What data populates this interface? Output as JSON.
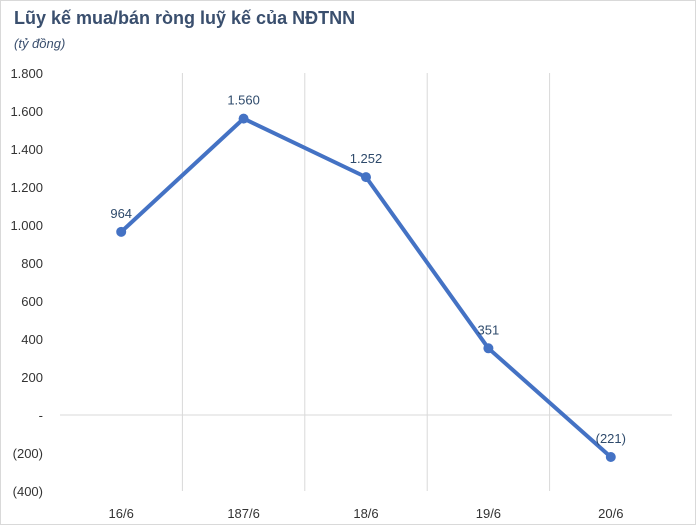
{
  "title": "Lũy kế mua/bán ròng luỹ kế của NĐTNN",
  "subtitle": "(tỷ đồng)",
  "chart_data": {
    "type": "line",
    "title": "Lũy kế mua/bán ròng luỹ kế của NĐTNN",
    "subtitle": "(tỷ đồng)",
    "categories": [
      "16/6",
      "187/6",
      "18/6",
      "19/6",
      "20/6"
    ],
    "series": [
      {
        "values": [
          964,
          1560,
          1252,
          351,
          -221
        ],
        "data_labels": [
          "964",
          "1.560",
          "1.252",
          "351",
          "(221)"
        ],
        "color": "#4472c4"
      }
    ],
    "ylim": [
      -400,
      1800
    ],
    "y_ticks": [
      1800,
      1600,
      1400,
      1200,
      1000,
      800,
      600,
      400,
      200,
      0,
      -200,
      -400
    ],
    "y_tick_labels": [
      "1.800",
      "1.600",
      "1.400",
      "1.200",
      "1.000",
      "800",
      "600",
      "400",
      "200",
      "-",
      "(200)",
      "(400)"
    ],
    "grid": "vertical",
    "legend": "none"
  }
}
